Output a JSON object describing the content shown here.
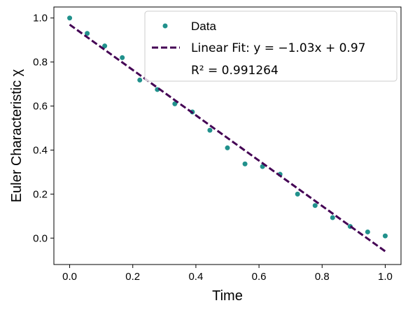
{
  "chart_data": {
    "type": "scatter",
    "xlabel": "Time",
    "ylabel": "Euler Characteristic χ",
    "xlim": [
      -0.05,
      1.05
    ],
    "ylim": [
      -0.12,
      1.05
    ],
    "xticks": [
      "0.0",
      "0.2",
      "0.4",
      "0.6",
      "0.8",
      "1.0"
    ],
    "yticks": [
      "0.0",
      "0.2",
      "0.4",
      "0.6",
      "0.8",
      "1.0"
    ],
    "grid": false,
    "legend_position": "top-right",
    "series": [
      {
        "name": "Data",
        "kind": "scatter",
        "color": "#21918c",
        "x": [
          0.0,
          0.0556,
          0.1111,
          0.1667,
          0.2222,
          0.2778,
          0.3333,
          0.3889,
          0.4444,
          0.5,
          0.5556,
          0.6111,
          0.6667,
          0.7222,
          0.7778,
          0.8333,
          0.8889,
          0.9444,
          1.0
        ],
        "y": [
          1.0,
          0.93,
          0.873,
          0.82,
          0.718,
          0.675,
          0.61,
          0.573,
          0.49,
          0.41,
          0.337,
          0.325,
          0.29,
          0.2,
          0.148,
          0.093,
          0.053,
          0.028,
          0.01
        ]
      },
      {
        "name": "Linear Fit: y = −1.03x + 0.97",
        "kind": "line",
        "style": "dashed",
        "color": "#440154",
        "slope": -1.03,
        "intercept": 0.97,
        "x_range": [
          0.0,
          1.0
        ]
      }
    ],
    "legend": {
      "entries": [
        "Data",
        "Linear Fit: y = −1.03x + 0.97"
      ],
      "note": "R² = 0.991264"
    }
  }
}
